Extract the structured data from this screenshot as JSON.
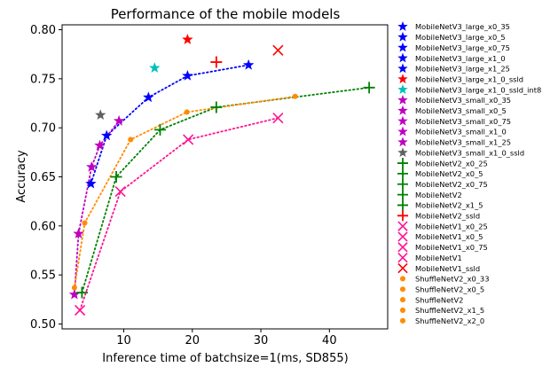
{
  "chart_data": {
    "type": "scatter",
    "title": "Performance of the mobile models",
    "xlabel": "Inference time of batchsize=1(ms, SD855)",
    "ylabel": "Accuracy",
    "xlim": [
      1,
      48.5
    ],
    "ylim": [
      0.495,
      0.805
    ],
    "xticks": [
      10,
      20,
      30,
      40
    ],
    "yticks": [
      0.5,
      0.55,
      0.6,
      0.65,
      0.7,
      0.75,
      0.8
    ],
    "grid": false,
    "legend_position": "outside-right",
    "series": [
      {
        "name": "MobileNetV3_large_x0_35",
        "color": "#0000ff",
        "marker": "star",
        "points": [
          [
            5.2,
            0.643
          ]
        ]
      },
      {
        "name": "MobileNetV3_large_x0_5",
        "color": "#0000ff",
        "marker": "star",
        "points": [
          [
            7.5,
            0.692
          ]
        ]
      },
      {
        "name": "MobileNetV3_large_x0_75",
        "color": "#0000ff",
        "marker": "star",
        "points": [
          [
            13.6,
            0.731
          ]
        ]
      },
      {
        "name": "MobileNetV3_large_x1_0",
        "color": "#0000ff",
        "marker": "star",
        "points": [
          [
            19.3,
            0.753
          ]
        ]
      },
      {
        "name": "MobileNetV3_large_x1_25",
        "color": "#0000ff",
        "marker": "star",
        "points": [
          [
            28.2,
            0.764
          ]
        ]
      },
      {
        "name": "MobileNetV3_large_x1_0_ssld",
        "color": "#ff0000",
        "marker": "star",
        "points": [
          [
            19.3,
            0.79
          ]
        ]
      },
      {
        "name": "MobileNetV3_large_x1_0_ssld_int8",
        "color": "#00bfbf",
        "marker": "star",
        "points": [
          [
            14.5,
            0.761
          ]
        ]
      },
      {
        "name": "MobileNetV3_small_x0_35",
        "color": "#bf00bf",
        "marker": "star",
        "points": [
          [
            2.8,
            0.53
          ]
        ]
      },
      {
        "name": "MobileNetV3_small_x0_5",
        "color": "#bf00bf",
        "marker": "star",
        "points": [
          [
            3.4,
            0.592
          ]
        ]
      },
      {
        "name": "MobileNetV3_small_x0_75",
        "color": "#bf00bf",
        "marker": "star",
        "points": [
          [
            5.3,
            0.66
          ]
        ]
      },
      {
        "name": "MobileNetV3_small_x1_0",
        "color": "#bf00bf",
        "marker": "star",
        "points": [
          [
            6.5,
            0.682
          ]
        ]
      },
      {
        "name": "MobileNetV3_small_x1_25",
        "color": "#bf00bf",
        "marker": "star",
        "points": [
          [
            9.3,
            0.707
          ]
        ]
      },
      {
        "name": "MobileNetV3_small_x1_0_ssld",
        "color": "#606060",
        "marker": "star",
        "points": [
          [
            6.6,
            0.713
          ]
        ]
      },
      {
        "name": "MobileNetV2_x0_25",
        "color": "#008000",
        "marker": "plus",
        "points": [
          [
            3.9,
            0.532
          ]
        ]
      },
      {
        "name": "MobileNetV2_x0_5",
        "color": "#008000",
        "marker": "plus",
        "points": [
          [
            8.9,
            0.65
          ]
        ]
      },
      {
        "name": "MobileNetV2_x0_75",
        "color": "#008000",
        "marker": "plus",
        "points": [
          [
            15.3,
            0.698
          ]
        ]
      },
      {
        "name": "MobileNetV2",
        "color": "#008000",
        "marker": "plus",
        "points": [
          [
            23.5,
            0.721
          ]
        ]
      },
      {
        "name": "MobileNetV2_x1_5",
        "color": "#008000",
        "marker": "plus",
        "points": [
          [
            45.8,
            0.741
          ]
        ]
      },
      {
        "name": "MobileNetV2_ssld",
        "color": "#ff0000",
        "marker": "plus",
        "points": [
          [
            23.5,
            0.767
          ]
        ]
      },
      {
        "name": "MobileNetV1_x0_25",
        "color": "#ff1493",
        "marker": "x",
        "points": [
          [
            3.6,
            0.514
          ]
        ]
      },
      {
        "name": "MobileNetV1_x0_5",
        "color": "#ff1493",
        "marker": "x",
        "points": [
          [
            9.5,
            0.635
          ]
        ]
      },
      {
        "name": "MobileNetV1_x0_75",
        "color": "#ff1493",
        "marker": "x",
        "points": [
          [
            19.4,
            0.688
          ]
        ]
      },
      {
        "name": "MobileNetV1",
        "color": "#ff1493",
        "marker": "x",
        "points": [
          [
            32.5,
            0.71
          ]
        ]
      },
      {
        "name": "MobileNetV1_ssld",
        "color": "#ff0000",
        "marker": "x",
        "points": [
          [
            32.5,
            0.779
          ]
        ]
      },
      {
        "name": "ShuffleNetV2_x0_33",
        "color": "#ff8c00",
        "marker": "dot",
        "points": [
          [
            2.8,
            0.537
          ]
        ]
      },
      {
        "name": "ShuffleNetV2_x0_5",
        "color": "#ff8c00",
        "marker": "dot",
        "points": [
          [
            4.3,
            0.603
          ]
        ]
      },
      {
        "name": "ShuffleNetV2",
        "color": "#ff8c00",
        "marker": "dot",
        "points": [
          [
            11.0,
            0.688
          ]
        ]
      },
      {
        "name": "ShuffleNetV2_x1_5",
        "color": "#ff8c00",
        "marker": "dot",
        "points": [
          [
            19.2,
            0.716
          ]
        ]
      },
      {
        "name": "ShuffleNetV2_x2_0",
        "color": "#ff8c00",
        "marker": "dot",
        "points": [
          [
            35.0,
            0.732
          ]
        ]
      }
    ],
    "trend_lines": [
      {
        "color": "#0000ff",
        "points": [
          [
            5.2,
            0.643
          ],
          [
            7.5,
            0.692
          ],
          [
            13.6,
            0.731
          ],
          [
            19.3,
            0.753
          ],
          [
            28.2,
            0.764
          ]
        ]
      },
      {
        "color": "#bf00bf",
        "points": [
          [
            2.8,
            0.53
          ],
          [
            3.4,
            0.592
          ],
          [
            5.3,
            0.66
          ],
          [
            6.5,
            0.682
          ],
          [
            9.3,
            0.707
          ]
        ]
      },
      {
        "color": "#008000",
        "points": [
          [
            3.9,
            0.532
          ],
          [
            8.9,
            0.65
          ],
          [
            15.3,
            0.698
          ],
          [
            23.5,
            0.721
          ],
          [
            45.8,
            0.741
          ]
        ]
      },
      {
        "color": "#ff1493",
        "points": [
          [
            3.6,
            0.514
          ],
          [
            9.5,
            0.635
          ],
          [
            19.4,
            0.688
          ],
          [
            32.5,
            0.71
          ]
        ]
      },
      {
        "color": "#ff8c00",
        "points": [
          [
            2.8,
            0.537
          ],
          [
            4.3,
            0.603
          ],
          [
            11.0,
            0.688
          ],
          [
            19.2,
            0.716
          ],
          [
            35.0,
            0.732
          ]
        ]
      }
    ]
  }
}
